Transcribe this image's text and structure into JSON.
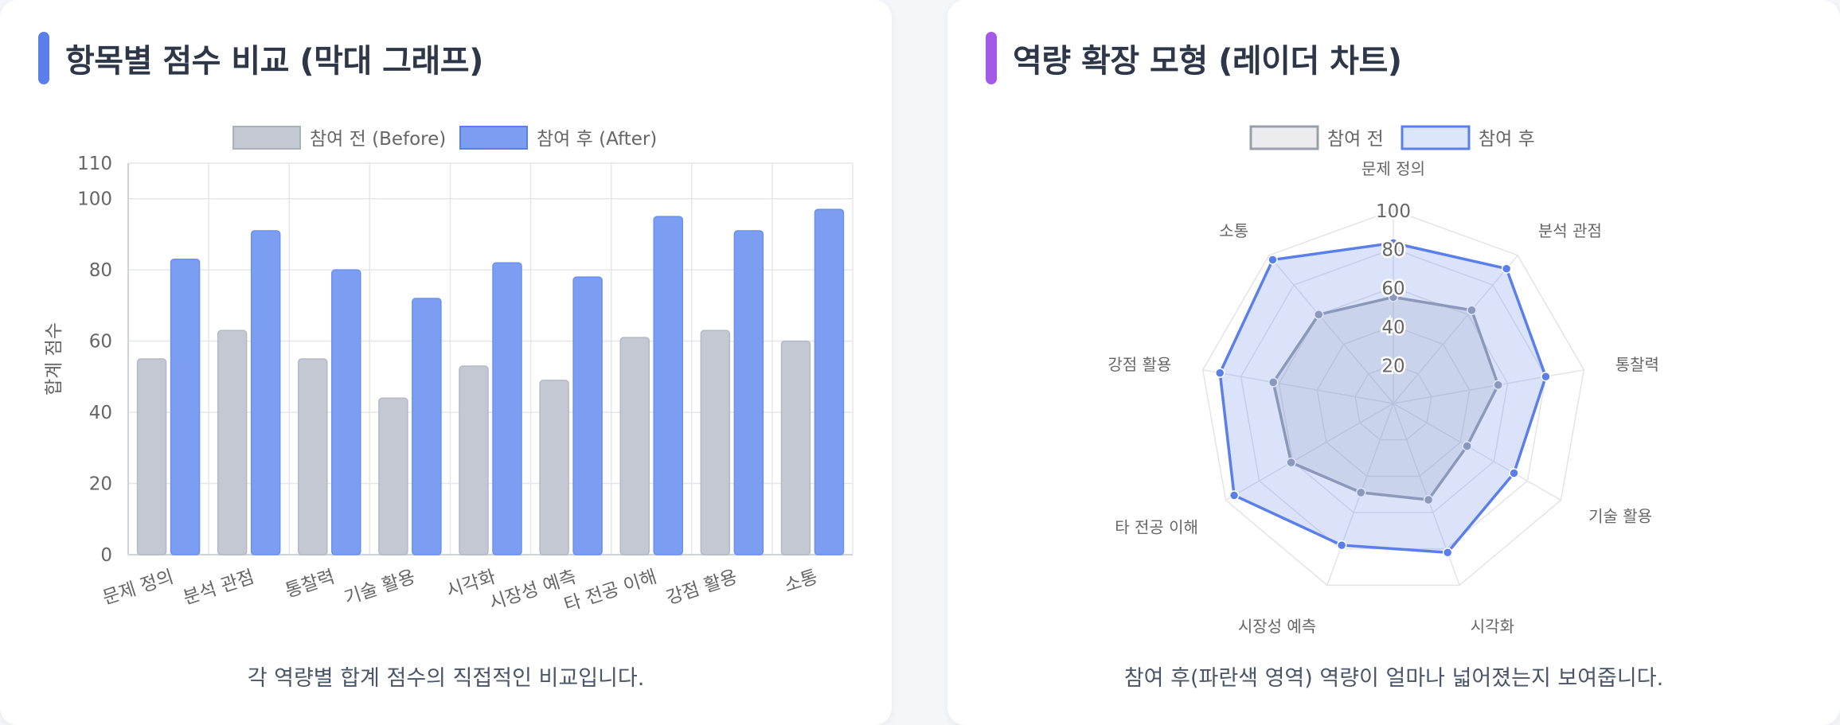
{
  "bar_card": {
    "title": "항목별 점수 비교 (막대 그래프)",
    "caption": "각 역량별 합계 점수의 직접적인 비교입니다.",
    "accent_color": "#5b7fea"
  },
  "radar_card": {
    "title": "역량 확장 모형 (레이더 차트)",
    "caption": "참여 후(파란색 영역) 역량이 얼마나 넓어졌는지 보여줍니다.",
    "accent_color": "#a35ae8"
  },
  "chart_data": [
    {
      "type": "bar",
      "categories": [
        "문제 정의",
        "분석 관점",
        "통찰력",
        "기술 활용",
        "시각화",
        "시장성 예측",
        "타 전공 이해",
        "강점 활용",
        "소통"
      ],
      "series": [
        {
          "name": "참여 전 (Before)",
          "values": [
            55,
            63,
            55,
            44,
            53,
            49,
            61,
            63,
            60
          ],
          "color": "#c3c8d3"
        },
        {
          "name": "참여 후 (After)",
          "values": [
            83,
            91,
            80,
            72,
            82,
            78,
            95,
            91,
            97
          ],
          "color": "#7b9ef2"
        }
      ],
      "ylabel": "합계 점수",
      "ylim": [
        0,
        110
      ],
      "yticks": [
        0,
        20,
        40,
        60,
        80,
        100,
        110
      ],
      "grid": true,
      "legend": "top-center"
    },
    {
      "type": "radar",
      "categories": [
        "문제 정의",
        "분석 관점",
        "통찰력",
        "기술 활용",
        "시각화",
        "시장성 예측",
        "타 전공 이해",
        "강점 활용",
        "소통"
      ],
      "series": [
        {
          "name": "참여 전",
          "values": [
            55,
            63,
            55,
            44,
            53,
            49,
            61,
            63,
            60
          ],
          "stroke": "#999fad",
          "fill": "rgba(160,165,178,0.22)"
        },
        {
          "name": "참여 후",
          "values": [
            83,
            91,
            80,
            72,
            82,
            78,
            95,
            91,
            97
          ],
          "stroke": "#5b7fea",
          "fill": "rgba(91,127,234,0.22)"
        }
      ],
      "rlim": [
        0,
        100
      ],
      "rticks": [
        20,
        40,
        60,
        80,
        100
      ],
      "legend": "top-center"
    }
  ]
}
